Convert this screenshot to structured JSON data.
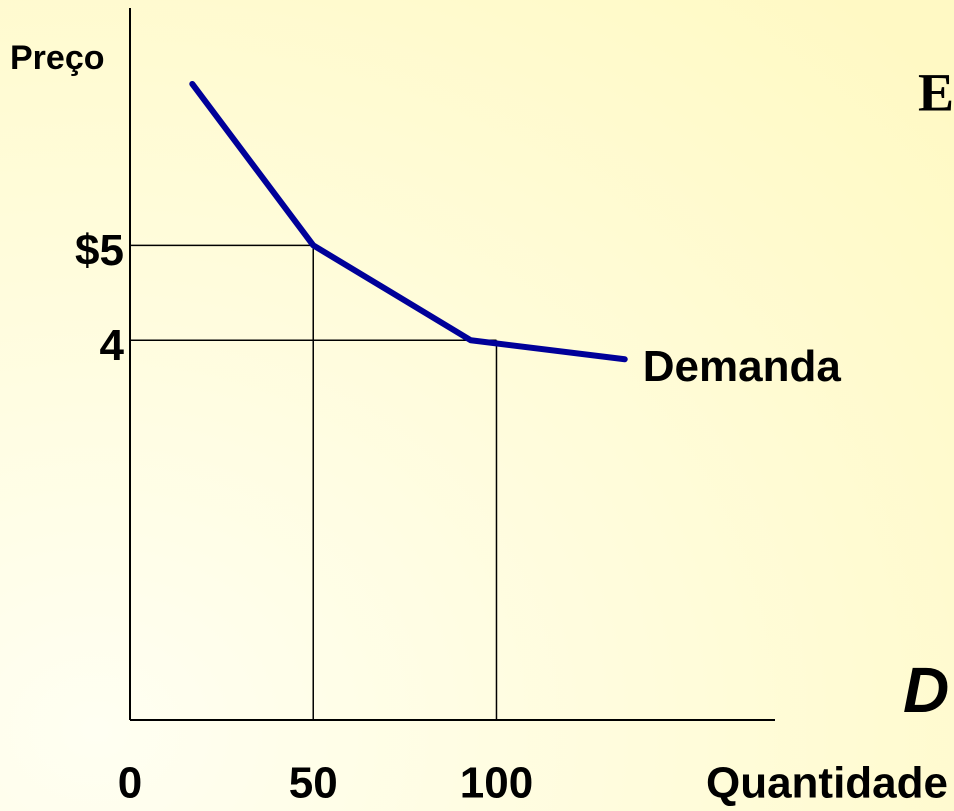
{
  "chart_data": {
    "type": "line",
    "y_label": "Preço",
    "x_label": "Quantidade",
    "xlim": [
      0,
      176
    ],
    "ylim": [
      0,
      7.5
    ],
    "xticks": [
      0,
      50,
      100
    ],
    "yticks": [
      {
        "value": 5,
        "label": "$5"
      },
      4
    ],
    "series": [
      {
        "name": "Demanda",
        "color": "#000099",
        "x": [
          17,
          50,
          93,
          135
        ],
        "values": [
          6.7,
          5,
          4,
          3.8
        ]
      }
    ],
    "guides": [
      {
        "x": 50,
        "y": 5
      },
      {
        "x": 100,
        "y": 4
      }
    ],
    "annotations": [
      {
        "text": "E",
        "color": "#000000"
      },
      {
        "text": "D",
        "color": "#b0102a"
      }
    ]
  }
}
